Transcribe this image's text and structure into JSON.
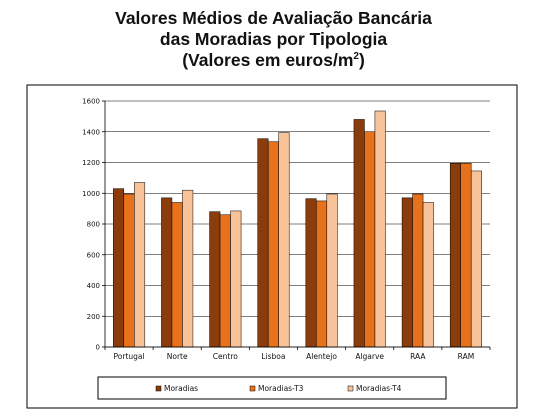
{
  "title": {
    "line1": "Valores Médios de Avaliação Bancária",
    "line2": "das Moradias por Tipologia",
    "line3_prefix": "(Valores em euros/m",
    "line3_sup": "2",
    "line3_suffix": ")"
  },
  "colors": {
    "Moradias": "#8b3c0c",
    "Moradias-T3": "#e8711c",
    "Moradias-T4": "#f9c39a",
    "grid": "#000000",
    "frame": "#000000"
  },
  "chart_data": {
    "type": "bar",
    "title": "Valores Médios de Avaliação Bancária das Moradias por Tipologia (Valores em euros/m2)",
    "xlabel": "",
    "ylabel": "",
    "categories": [
      "Portugal",
      "Norte",
      "Centro",
      "Lisboa",
      "Alentejo",
      "Algarve",
      "RAA",
      "RAM"
    ],
    "series": [
      {
        "name": "Moradias",
        "values": [
          1030,
          970,
          880,
          1355,
          965,
          1480,
          970,
          1195
        ]
      },
      {
        "name": "Moradias-T3",
        "values": [
          995,
          940,
          860,
          1335,
          950,
          1400,
          995,
          1195
        ]
      },
      {
        "name": "Moradias-T4",
        "values": [
          1070,
          1020,
          885,
          1395,
          995,
          1535,
          940,
          1145
        ]
      }
    ],
    "ylim": [
      0,
      1600
    ],
    "yticks": [
      0,
      200,
      400,
      600,
      800,
      1000,
      1200,
      1400,
      1600
    ],
    "grid": true,
    "legend_position": "bottom"
  }
}
